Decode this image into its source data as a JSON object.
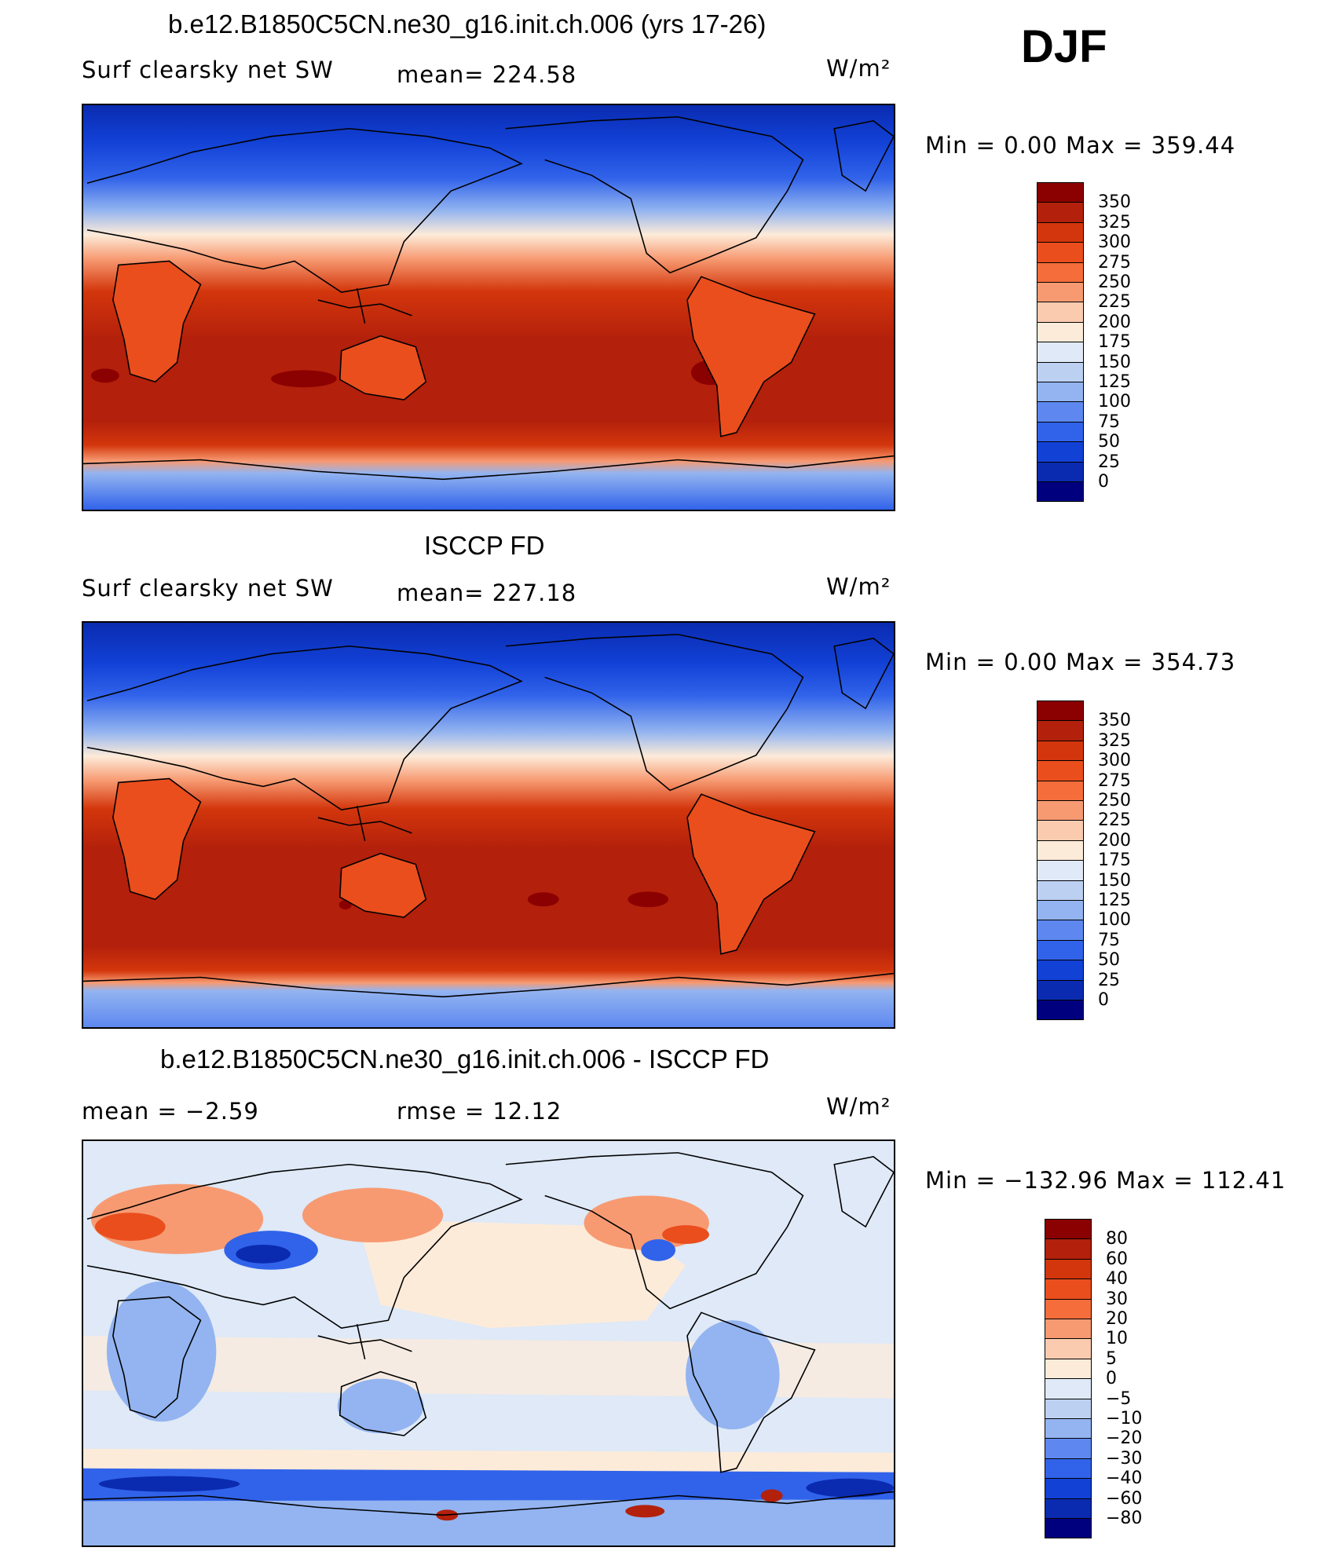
{
  "season": "DJF",
  "panels": [
    {
      "id": "model",
      "title": "b.e12.B1850C5CN.ne30_g16.init.ch.006 (yrs 17-26)",
      "left_label": "Surf clearsky net SW",
      "center_label": "mean= 224.58",
      "units": "W/m²",
      "stats": "Min =      0.00 Max  =  359.44",
      "colorbar": {
        "labels": [
          "350",
          "325",
          "300",
          "275",
          "250",
          "225",
          "200",
          "175",
          "150",
          "125",
          "100",
          "75",
          "50",
          "25",
          "0"
        ],
        "colors": [
          "#8b0000",
          "#b3200b",
          "#d3360c",
          "#ea4e1d",
          "#f46d3a",
          "#f79a72",
          "#fbcbb0",
          "#fdebd9",
          "#dfe9f7",
          "#bcd1f2",
          "#93b4f0",
          "#5e88f0",
          "#3163ea",
          "#1241d6",
          "#0a2bb0",
          "#00007f"
        ]
      }
    },
    {
      "id": "obs",
      "title": "ISCCP FD",
      "left_label": "Surf clearsky net SW",
      "center_label": "mean= 227.18",
      "units": "W/m²",
      "stats": "Min =      0.00 Max  =  354.73",
      "colorbar": {
        "labels": [
          "350",
          "325",
          "300",
          "275",
          "250",
          "225",
          "200",
          "175",
          "150",
          "125",
          "100",
          "75",
          "50",
          "25",
          "0"
        ],
        "colors": [
          "#8b0000",
          "#b3200b",
          "#d3360c",
          "#ea4e1d",
          "#f46d3a",
          "#f79a72",
          "#fbcbb0",
          "#fdebd9",
          "#dfe9f7",
          "#bcd1f2",
          "#93b4f0",
          "#5e88f0",
          "#3163ea",
          "#1241d6",
          "#0a2bb0",
          "#00007f"
        ]
      }
    },
    {
      "id": "diff",
      "title": "b.e12.B1850C5CN.ne30_g16.init.ch.006 - ISCCP FD",
      "left_label": "mean =   −2.59",
      "center_label": "rmse =   12.12",
      "units": "W/m²",
      "stats": "Min = −132.96 Max = 112.41",
      "colorbar": {
        "labels": [
          "80",
          "60",
          "40",
          "30",
          "20",
          "10",
          "5",
          "0",
          "−5",
          "−10",
          "−20",
          "−30",
          "−40",
          "−60",
          "−80"
        ],
        "colors": [
          "#8b0000",
          "#b3200b",
          "#d3360c",
          "#ea4e1d",
          "#f46d3a",
          "#f79a72",
          "#fbcbb0",
          "#fdebd9",
          "#dfe9f7",
          "#bcd1f2",
          "#93b4f0",
          "#5e88f0",
          "#3163ea",
          "#1241d6",
          "#0a2bb0",
          "#00007f"
        ]
      }
    }
  ]
}
